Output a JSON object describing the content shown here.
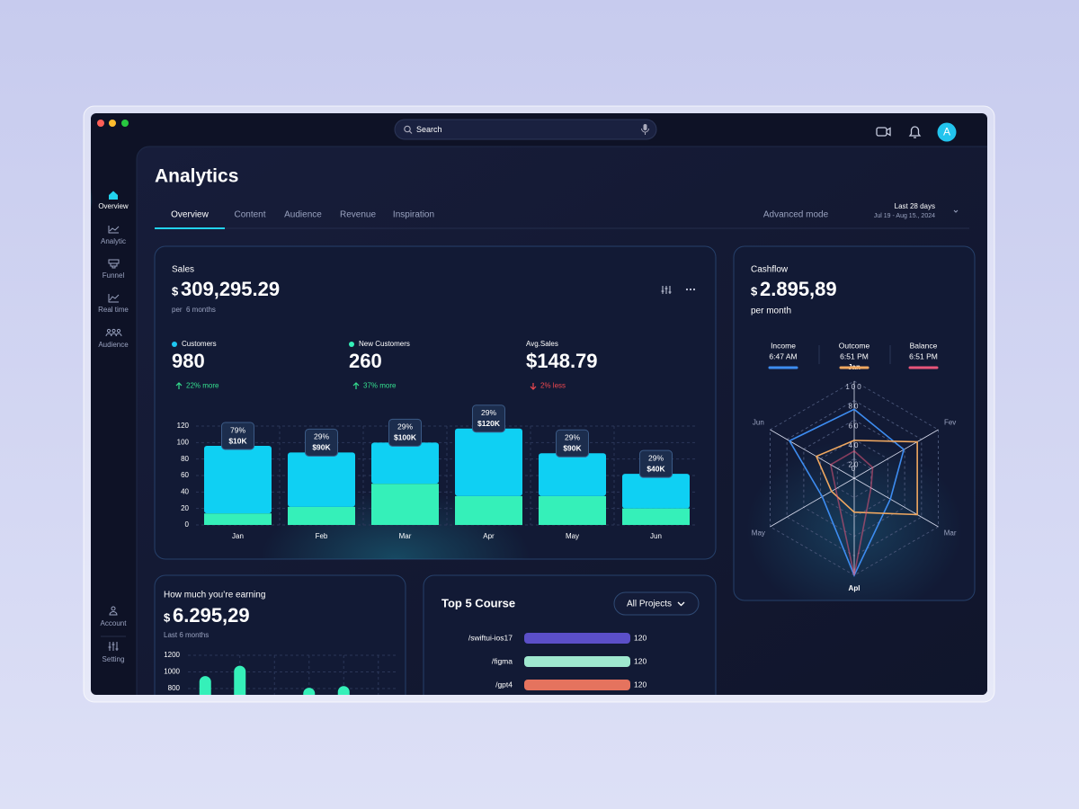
{
  "window": {
    "search": "Search",
    "avatar": "A"
  },
  "sidebar": {
    "items": [
      {
        "label": "Overview"
      },
      {
        "label": "Analytic"
      },
      {
        "label": "Funnel"
      },
      {
        "label": "Real time"
      },
      {
        "label": "Audience"
      }
    ],
    "footer": [
      {
        "label": "Account"
      },
      {
        "label": "Setting"
      }
    ]
  },
  "header": {
    "title": "Analytics",
    "tabs": [
      "Overview",
      "Content",
      "Audience",
      "Revenue",
      "Inspiration"
    ],
    "mode": "Advanced mode",
    "range": {
      "title": "Last 28 days",
      "dates": "Jul 19 - Aug 15., 2024"
    }
  },
  "sales": {
    "title": "Sales",
    "currency": "$",
    "amount": "309,295.29",
    "period": "per  6 months",
    "stats": [
      {
        "label": "Customers",
        "value": "980",
        "change": "22% more",
        "trend": "up",
        "color": "#1ec8f2"
      },
      {
        "label": "New Customers",
        "value": "260",
        "change": "37% more",
        "trend": "up",
        "color": "#35f0b9"
      },
      {
        "label": "Avg.Sales",
        "value": "$148.79",
        "change": "2% less",
        "trend": "down"
      }
    ],
    "chart": {
      "type": "bar",
      "stacked": true,
      "categories": [
        "Jan",
        "Feb",
        "Mar",
        "Apr",
        "May",
        "Jun"
      ],
      "series": [
        {
          "color": "#35f0b9",
          "values": [
            14,
            22,
            50,
            35,
            35,
            20
          ]
        },
        {
          "color": "#0fd0f3",
          "values": [
            82,
            66,
            50,
            82,
            52,
            42
          ]
        }
      ],
      "annotations": [
        {
          "percent": "79%",
          "amount": "$10K"
        },
        {
          "percent": "29%",
          "amount": "$90K"
        },
        {
          "percent": "29%",
          "amount": "$100K"
        },
        {
          "percent": "29%",
          "amount": "$120K"
        },
        {
          "percent": "29%",
          "amount": "$90K"
        },
        {
          "percent": "29%",
          "amount": "$40K"
        }
      ],
      "ylim": [
        0,
        120
      ],
      "yticks": [
        0,
        20,
        40,
        60,
        80,
        100,
        120
      ],
      "grid": true
    }
  },
  "cashflow": {
    "title": "Cashflow",
    "currency": "$",
    "amount": "2.895,89",
    "period": "per month",
    "chart": {
      "type": "radar",
      "axes": [
        "Jan",
        "Fev",
        "Mar",
        "Apl",
        "May",
        "Jun"
      ],
      "rlim": [
        0,
        100
      ],
      "rticks": [
        0,
        20,
        40,
        60,
        80,
        100
      ],
      "series": [
        {
          "name": "Income",
          "time": "6:47 AM",
          "color": "#3d8cf0",
          "values": [
            71,
            59,
            43,
            100,
            38,
            77
          ]
        },
        {
          "name": "Outcome",
          "time": "6:51 PM",
          "color": "#f0a860",
          "values": [
            39,
            75,
            75,
            35,
            27,
            45
          ]
        },
        {
          "name": "Balance",
          "time": "6:51 PM",
          "color": "#e8557a",
          "values": [
            28,
            22,
            20,
            100,
            22,
            28
          ]
        }
      ]
    }
  },
  "earning": {
    "title": "How much you’re earning",
    "currency": "$",
    "amount": "6.295,29",
    "period": "Last 6 months",
    "chart": {
      "type": "bar",
      "values": [
        950,
        1075,
        null,
        810,
        830,
        null
      ],
      "color": "#35f0b9",
      "ylim": [
        800,
        1200
      ],
      "yticks": [
        800,
        1000,
        1200
      ],
      "grid": true
    }
  },
  "courses": {
    "title": "Top 5 Course",
    "filter": "All Projects",
    "chart": {
      "type": "bar",
      "orientation": "horizontal",
      "categories": [
        "/swiftui-ios17",
        "/figma",
        "/gpt4"
      ],
      "values": [
        120,
        120,
        120
      ],
      "colors": [
        "#5b4fc8",
        "#9fe8cf",
        "#e5735e"
      ]
    }
  }
}
